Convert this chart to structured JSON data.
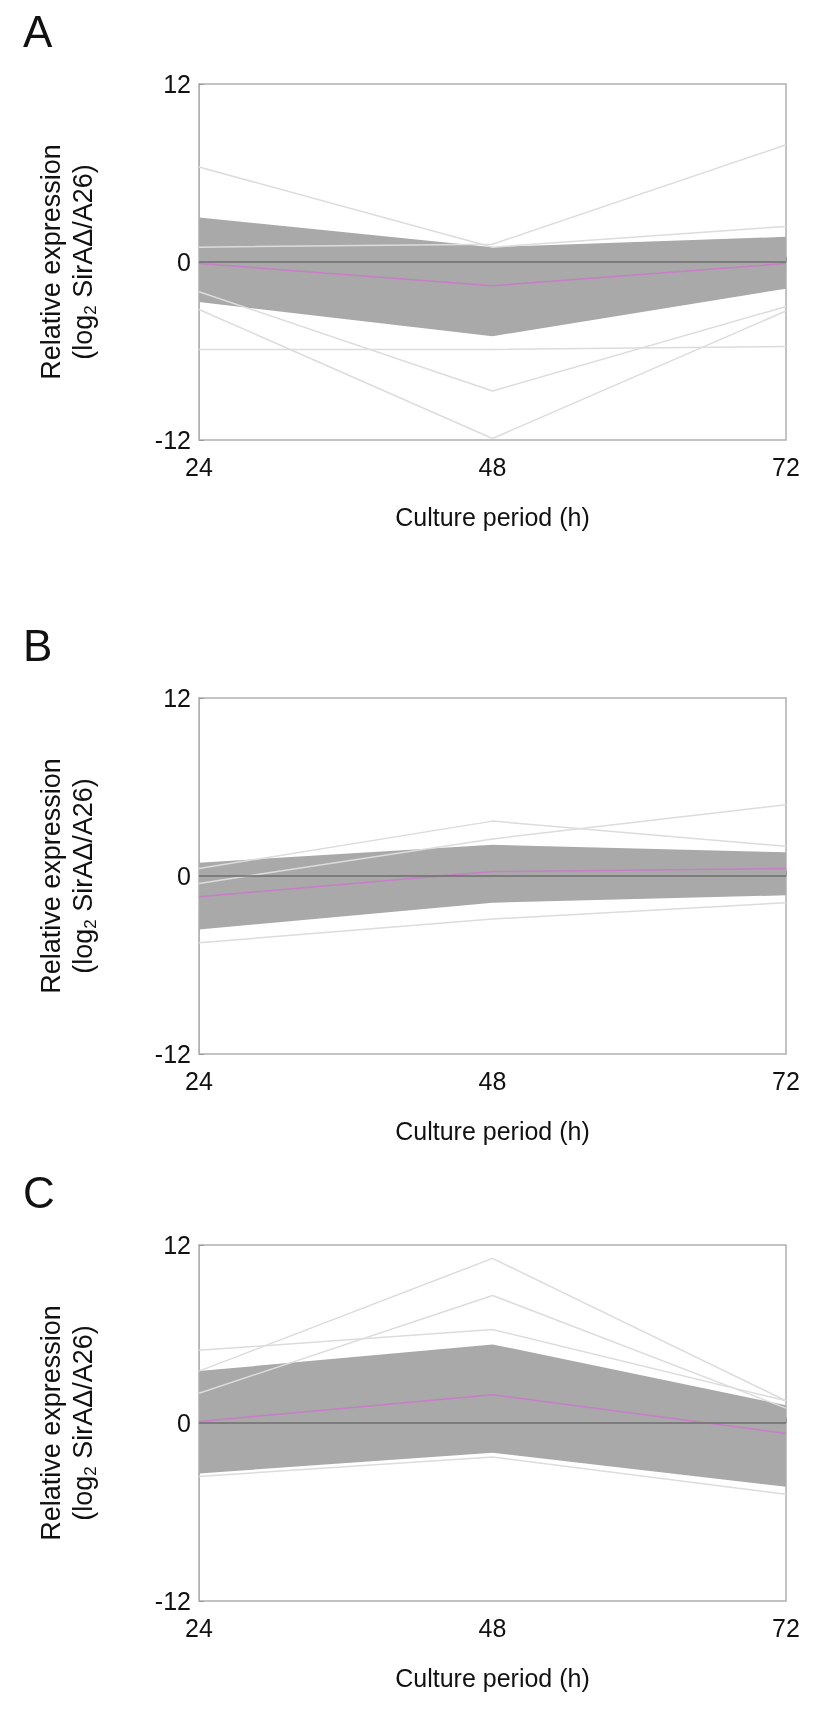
{
  "chart_data": [
    {
      "type": "line",
      "title": "A",
      "xlabel": "Culture period (h)",
      "ylabel": "Relative expression\n(log$_{2}$ SirAΔ/A26)",
      "x": [
        24,
        48,
        72
      ],
      "xlim": [
        24,
        72
      ],
      "xticks": [
        24,
        48,
        72
      ],
      "ylim": [
        -12,
        12
      ],
      "yticks": [
        -12,
        0,
        12
      ],
      "grid": false,
      "marker": "none",
      "line_style": "solid",
      "series": [
        {
          "color": "#dcdcdc",
          "values": [
            6.4,
            1.0,
            2.4
          ]
        },
        {
          "color": "#dcdcdc",
          "values": [
            1.0,
            1.2,
            7.9
          ]
        },
        {
          "color": "#dcdcdc",
          "values": [
            -3.2,
            -11.9,
            -3.3
          ]
        },
        {
          "color": "#dcdcdc",
          "values": [
            -2.0,
            -8.7,
            -3.0
          ]
        },
        {
          "color": "#dcdcdc",
          "values": [
            -5.9,
            -5.9,
            -5.7
          ]
        },
        {
          "color": "#c77dc7",
          "values": [
            -0.1,
            -1.6,
            -0.1
          ],
          "lower": [
            -2.7,
            -5.0,
            -1.8
          ],
          "upper": [
            3.0,
            1.0,
            1.7
          ]
        }
      ],
      "ref_lines": [
        {
          "axis": "y",
          "value": 0,
          "color": "#6e6e6e"
        }
      ]
    },
    {
      "type": "line",
      "title": "B",
      "xlabel": "Culture period (h)",
      "ylabel": "Relative expression\n(log$_{2}$ SirAΔ/A26)",
      "x": [
        24,
        48,
        72
      ],
      "xlim": [
        24,
        72
      ],
      "xticks": [
        24,
        48,
        72
      ],
      "ylim": [
        -12,
        12
      ],
      "yticks": [
        -12,
        0,
        12
      ],
      "grid": false,
      "marker": "none",
      "line_style": "solid",
      "series": [
        {
          "color": "#dcdcdc",
          "values": [
            0.5,
            3.7,
            2.0
          ]
        },
        {
          "color": "#dcdcdc",
          "values": [
            -0.5,
            2.5,
            4.8
          ]
        },
        {
          "color": "#dcdcdc",
          "values": [
            -4.5,
            -2.9,
            -1.8
          ]
        },
        {
          "color": "#c77dc7",
          "values": [
            -1.4,
            0.3,
            0.5
          ],
          "lower": [
            -3.6,
            -1.8,
            -1.3
          ],
          "upper": [
            0.9,
            2.1,
            1.6
          ]
        }
      ],
      "ref_lines": [
        {
          "axis": "y",
          "value": 0,
          "color": "#6e6e6e"
        }
      ]
    },
    {
      "type": "line",
      "title": "C",
      "xlabel": "Culture period (h)",
      "ylabel": "Relative expression\n(log$_{2}$ SirAΔ/A26)",
      "x": [
        24,
        48,
        72
      ],
      "xlim": [
        24,
        72
      ],
      "xticks": [
        24,
        48,
        72
      ],
      "ylim": [
        -12,
        12
      ],
      "yticks": [
        -12,
        0,
        12
      ],
      "grid": false,
      "marker": "none",
      "line_style": "solid",
      "series": [
        {
          "color": "#dcdcdc",
          "values": [
            3.5,
            11.1,
            1.5
          ]
        },
        {
          "color": "#dcdcdc",
          "values": [
            4.9,
            6.3,
            1.5
          ]
        },
        {
          "color": "#dcdcdc",
          "values": [
            2.0,
            8.6,
            1.0
          ]
        },
        {
          "color": "#dcdcdc",
          "values": [
            -3.6,
            -2.3,
            -4.8
          ]
        },
        {
          "color": "#c77dc7",
          "values": [
            0.1,
            1.9,
            -0.7
          ],
          "lower": [
            -3.4,
            -2.0,
            -4.3
          ],
          "upper": [
            3.5,
            5.3,
            1.2
          ]
        }
      ],
      "ref_lines": [
        {
          "axis": "y",
          "value": 0,
          "color": "#6e6e6e"
        }
      ]
    }
  ]
}
